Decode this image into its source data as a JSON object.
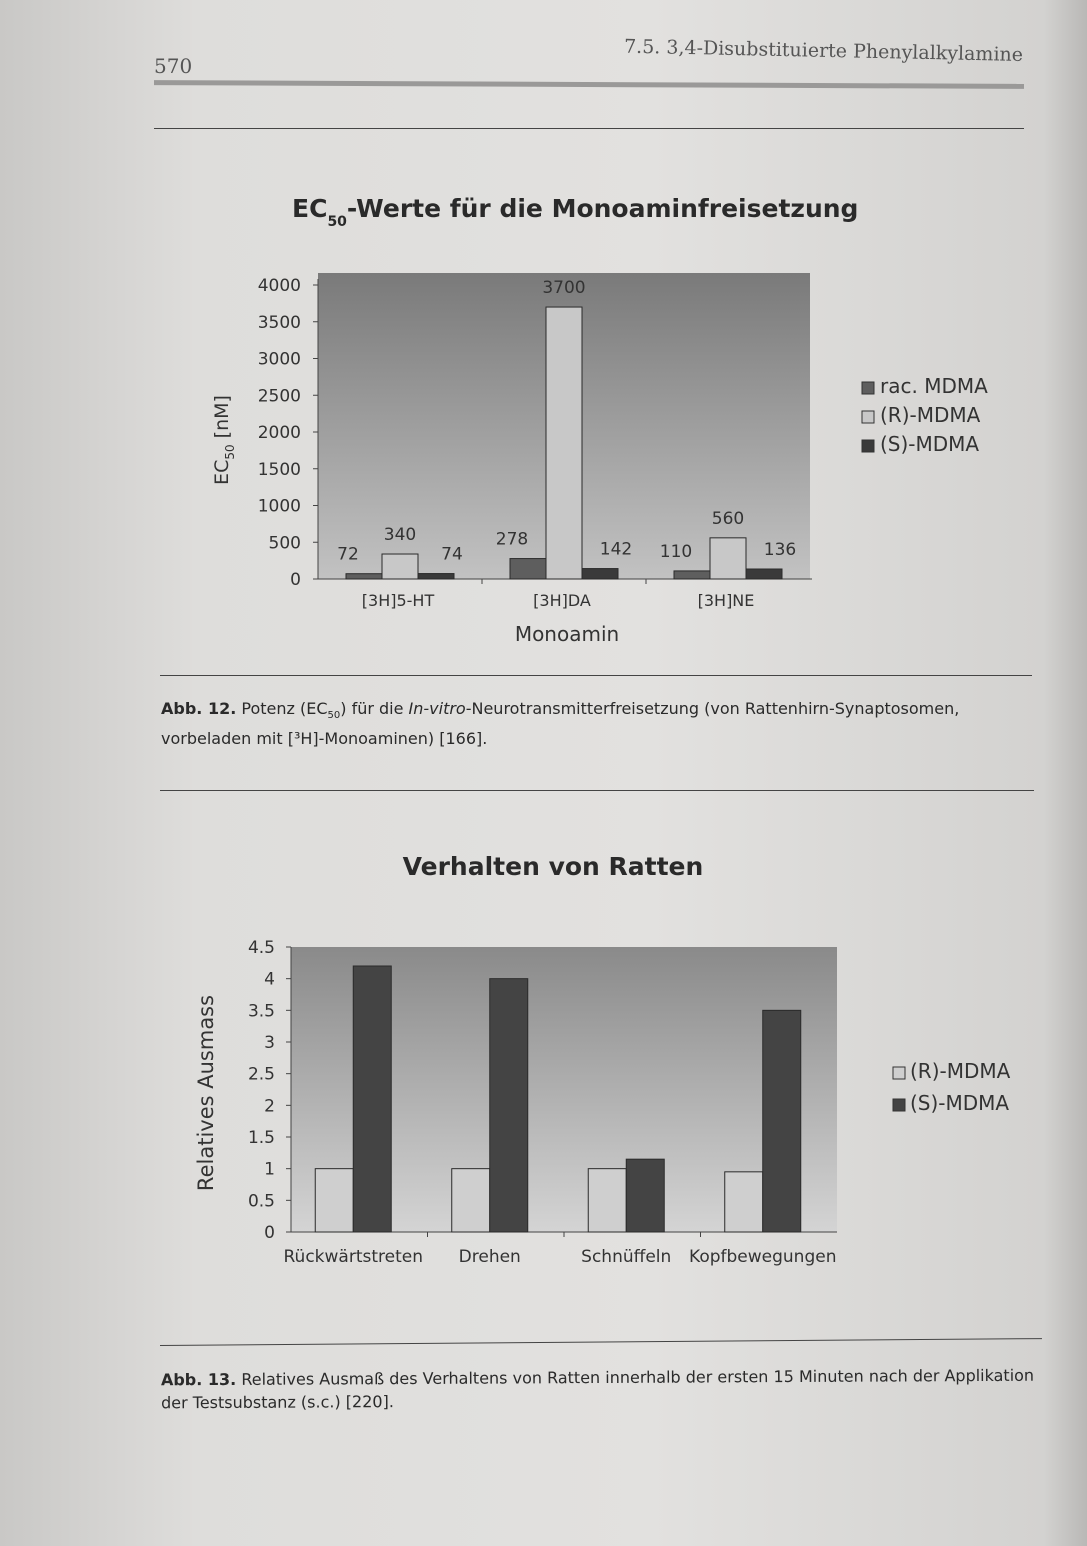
{
  "header": {
    "page_number": "570",
    "section_title": "7.5. 3,4-Disubstituierte Phenylalkylamine"
  },
  "figure12": {
    "caption_label": "Abb. 12.",
    "caption_text_1": " Potenz (EC",
    "caption_sub": "50",
    "caption_text_2": ") für die ",
    "caption_italic": "In-vitro",
    "caption_text_3": "-Neurotransmitterfreisetzung (von Rattenhirn-Synaptosomen, vorbeladen mit [³H]-Monoaminen) [166]."
  },
  "figure13": {
    "caption_label": "Abb. 13.",
    "caption_text": " Relatives Ausmaß des Verhaltens von Ratten innerhalb der ersten 15 Minuten nach der Applikation der Testsubstanz (s.c.) [220]."
  },
  "chart_data": [
    {
      "type": "bar",
      "title": "EC",
      "title_sub": "50",
      "title_rest": "-Werte für die Monoaminfreisetzung",
      "xlabel": "Monoamin",
      "ylabel": "EC",
      "ylabel_sub": "50",
      "ylabel_rest": " [nM]",
      "categories": [
        "[3H]5-HT",
        "[3H]DA",
        "[3H]NE"
      ],
      "ylim": [
        0,
        4000
      ],
      "yticks": [
        0,
        500,
        1000,
        1500,
        2000,
        2500,
        3000,
        3500,
        4000
      ],
      "legend_position": "right",
      "series": [
        {
          "name": "rac. MDMA",
          "values": [
            72,
            278,
            110
          ],
          "color": "#5e5e5e"
        },
        {
          "name": "(R)-MDMA",
          "values": [
            340,
            3700,
            560
          ],
          "color": "#c8c8c8"
        },
        {
          "name": "(S)-MDMA",
          "values": [
            74,
            142,
            136
          ],
          "color": "#3a3a3a"
        }
      ],
      "data_labels": true
    },
    {
      "type": "bar",
      "title": "Verhalten von Ratten",
      "xlabel": "",
      "ylabel": "Relatives Ausmass",
      "categories": [
        "Rückwärtstreten",
        "Drehen",
        "Schnüffeln",
        "Kopfbewegungen"
      ],
      "ylim": [
        0,
        4.5
      ],
      "yticks": [
        0,
        0.5,
        1,
        1.5,
        2,
        2.5,
        3,
        3.5,
        4,
        4.5
      ],
      "legend_position": "right",
      "series": [
        {
          "name": "(R)-MDMA",
          "values": [
            1.0,
            1.0,
            1.0,
            0.95
          ],
          "color": "#cfcfcf"
        },
        {
          "name": "(S)-MDMA",
          "values": [
            4.2,
            4.0,
            1.15,
            3.5
          ],
          "color": "#444444"
        }
      ],
      "data_labels": false
    }
  ]
}
